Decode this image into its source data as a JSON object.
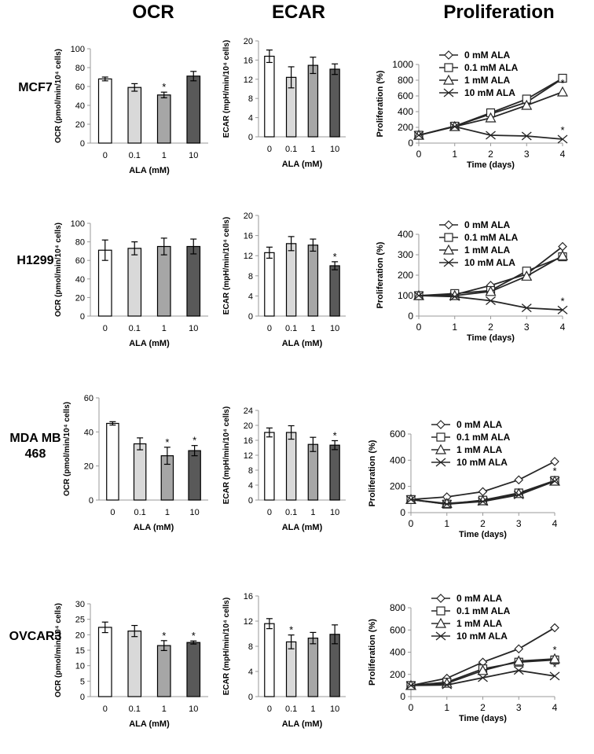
{
  "columns": {
    "ocr": "OCR",
    "ecar": "ECAR",
    "prolif": "Proliferation"
  },
  "rows": [
    {
      "label": "MCF7"
    },
    {
      "label": "H1299"
    },
    {
      "label": "MDA MB 468"
    },
    {
      "label": "OVCAR3"
    }
  ],
  "colors": {
    "bar_0": "#ffffff",
    "bar_0_1": "#d9d9d9",
    "bar_1": "#a6a6a6",
    "bar_10": "#595959",
    "line": "#262626"
  },
  "chart_data": [
    {
      "id": "mcf7-ocr",
      "type": "bar",
      "categories": [
        "0",
        "0.1",
        "1",
        "10"
      ],
      "values": [
        68,
        59,
        51,
        71
      ],
      "errors": [
        2,
        4,
        3,
        5
      ],
      "star": [
        false,
        false,
        true,
        false
      ],
      "ylim": [
        0,
        100
      ],
      "yticks": [
        0,
        20,
        40,
        60,
        80,
        100
      ],
      "ylabel": "OCR (pmol/min/10⁴ cells)",
      "xlabel": "ALA (mM)"
    },
    {
      "id": "mcf7-ecar",
      "type": "bar",
      "categories": [
        "0",
        "0.1",
        "1",
        "10"
      ],
      "values": [
        16.8,
        12.4,
        14.9,
        14.1
      ],
      "errors": [
        1.3,
        2.2,
        1.7,
        1.1
      ],
      "star": [
        false,
        false,
        false,
        false
      ],
      "ylim": [
        0,
        20
      ],
      "yticks": [
        0,
        4,
        8,
        12,
        16,
        20
      ],
      "ylabel": "ECAR (mpH/min/10⁴ cells)",
      "xlabel": "ALA (mM)"
    },
    {
      "id": "mcf7-prolif",
      "type": "line",
      "x": [
        0,
        1,
        2,
        3,
        4
      ],
      "xlim": [
        0,
        4
      ],
      "ylim": [
        0,
        1000
      ],
      "yticks": [
        0,
        200,
        400,
        600,
        800,
        1000
      ],
      "xlabel": "Time (days)",
      "ylabel": "Proliferation (%)",
      "series": [
        {
          "name": "0 mM ALA",
          "marker": "diamond",
          "values": [
            100,
            215,
            370,
            520,
            820
          ]
        },
        {
          "name": "0.1 mM ALA",
          "marker": "square",
          "values": [
            100,
            215,
            385,
            560,
            825
          ]
        },
        {
          "name": "1 mM ALA",
          "marker": "triangle",
          "values": [
            100,
            210,
            320,
            480,
            650
          ]
        },
        {
          "name": "10 mM ALA",
          "marker": "x",
          "values": [
            100,
            210,
            100,
            90,
            50
          ]
        }
      ],
      "stars": [
        {
          "x": 4,
          "y": 720
        },
        {
          "x": 4,
          "y": 120
        }
      ]
    },
    {
      "id": "h1299-ocr",
      "type": "bar",
      "categories": [
        "0",
        "0.1",
        "1",
        "10"
      ],
      "values": [
        71,
        73,
        75,
        75
      ],
      "errors": [
        11,
        7,
        9,
        8
      ],
      "star": [
        false,
        false,
        false,
        false
      ],
      "ylim": [
        0,
        100
      ],
      "yticks": [
        0,
        20,
        40,
        60,
        80,
        100
      ],
      "ylabel": "OCR (pmol/min/10⁴ cells)",
      "xlabel": "ALA (mM)"
    },
    {
      "id": "h1299-ecar",
      "type": "bar",
      "categories": [
        "0",
        "0.1",
        "1",
        "10"
      ],
      "values": [
        12.6,
        14.4,
        14.1,
        10
      ],
      "errors": [
        1.1,
        1.4,
        1.2,
        0.8
      ],
      "star": [
        false,
        false,
        false,
        true
      ],
      "ylim": [
        0,
        20
      ],
      "yticks": [
        0,
        4,
        8,
        12,
        16,
        20
      ],
      "ylabel": "ECAR (mpH/min/10⁴ cells)",
      "xlabel": "ALA (mM)"
    },
    {
      "id": "h1299-prolif",
      "type": "line",
      "x": [
        0,
        1,
        2,
        3,
        4
      ],
      "xlim": [
        0,
        4
      ],
      "ylim": [
        0,
        400
      ],
      "yticks": [
        0,
        100,
        200,
        300,
        400
      ],
      "xlabel": "Time (days)",
      "ylabel": "Proliferation (%)",
      "series": [
        {
          "name": "0 mM ALA",
          "marker": "diamond",
          "values": [
            100,
            105,
            150,
            205,
            340
          ]
        },
        {
          "name": "0.1 mM ALA",
          "marker": "square",
          "values": [
            100,
            110,
            125,
            220,
            290
          ]
        },
        {
          "name": "1 mM ALA",
          "marker": "triangle",
          "values": [
            100,
            100,
            120,
            195,
            295
          ]
        },
        {
          "name": "10 mM ALA",
          "marker": "x",
          "values": [
            100,
            95,
            75,
            40,
            30
          ]
        }
      ],
      "stars": [
        {
          "x": 4,
          "y": 55
        }
      ]
    },
    {
      "id": "mda-ocr",
      "type": "bar",
      "categories": [
        "0",
        "0.1",
        "1",
        "10"
      ],
      "values": [
        45,
        33,
        26,
        29
      ],
      "errors": [
        1,
        3.5,
        5,
        3
      ],
      "star": [
        false,
        false,
        true,
        true
      ],
      "ylim": [
        0,
        60
      ],
      "yticks": [
        0,
        20,
        40,
        60
      ],
      "ylabel": "OCR (pmol/min/10⁴ cells)",
      "xlabel": "ALA (mM)"
    },
    {
      "id": "mda-ecar",
      "type": "bar",
      "categories": [
        "0",
        "0.1",
        "1",
        "10"
      ],
      "values": [
        18.1,
        18.1,
        14.9,
        14.7
      ],
      "errors": [
        1.2,
        1.8,
        1.9,
        1.2
      ],
      "star": [
        false,
        false,
        false,
        true
      ],
      "ylim": [
        0,
        24
      ],
      "yticks": [
        0,
        4,
        8,
        12,
        16,
        20,
        24
      ],
      "ylabel": "ECAR (mpH/min/10⁴ cells)",
      "xlabel": "ALA (mM)"
    },
    {
      "id": "mda-prolif",
      "type": "line",
      "x": [
        0,
        1,
        2,
        3,
        4
      ],
      "xlim": [
        0,
        4
      ],
      "ylim": [
        0,
        600
      ],
      "yticks": [
        0,
        200,
        400,
        600
      ],
      "xlabel": "Time (days)",
      "ylabel": "Proliferation (%)",
      "series": [
        {
          "name": "0 mM ALA",
          "marker": "diamond",
          "values": [
            100,
            120,
            160,
            250,
            390
          ]
        },
        {
          "name": "0.1 mM ALA",
          "marker": "square",
          "values": [
            100,
            65,
            95,
            150,
            245
          ]
        },
        {
          "name": "1 mM ALA",
          "marker": "triangle",
          "values": [
            100,
            70,
            90,
            145,
            240
          ]
        },
        {
          "name": "10 mM ALA",
          "marker": "x",
          "values": [
            100,
            65,
            85,
            135,
            240
          ]
        }
      ],
      "stars": [
        {
          "x": 4,
          "y": 290
        }
      ]
    },
    {
      "id": "ovcar3-ocr",
      "type": "bar",
      "categories": [
        "0",
        "0.1",
        "1",
        "10"
      ],
      "values": [
        22.4,
        21.2,
        16.5,
        17.5
      ],
      "errors": [
        1.7,
        1.8,
        1.6,
        0.5
      ],
      "star": [
        false,
        false,
        true,
        true
      ],
      "ylim": [
        0,
        30
      ],
      "yticks": [
        0,
        5,
        10,
        15,
        20,
        25,
        30
      ],
      "ylabel": "OCR (pmol/min/10⁴ cells)",
      "xlabel": "ALA (mM)"
    },
    {
      "id": "ovcar3-ecar",
      "type": "bar",
      "categories": [
        "0",
        "0.1",
        "1",
        "10"
      ],
      "values": [
        11.6,
        8.7,
        9.3,
        9.9
      ],
      "errors": [
        0.8,
        1.1,
        0.9,
        1.5
      ],
      "star": [
        false,
        true,
        false,
        false
      ],
      "ylim": [
        0,
        16
      ],
      "yticks": [
        0,
        4,
        8,
        12,
        16
      ],
      "ylabel": "ECAR (mpH/min/10⁴ cells)",
      "xlabel": "ALA (mM)"
    },
    {
      "id": "ovcar3-prolif",
      "type": "line",
      "x": [
        0,
        1,
        2,
        3,
        4
      ],
      "xlim": [
        0,
        4
      ],
      "ylim": [
        0,
        800
      ],
      "yticks": [
        0,
        200,
        400,
        600,
        800
      ],
      "xlabel": "Time (days)",
      "ylabel": "Proliferation (%)",
      "series": [
        {
          "name": "0 mM ALA",
          "marker": "diamond",
          "values": [
            100,
            165,
            310,
            430,
            620
          ]
        },
        {
          "name": "0.1 mM ALA",
          "marker": "square",
          "values": [
            100,
            130,
            250,
            310,
            330
          ]
        },
        {
          "name": "1 mM ALA",
          "marker": "triangle",
          "values": [
            100,
            120,
            235,
            320,
            340
          ]
        },
        {
          "name": "10 mM ALA",
          "marker": "x",
          "values": [
            100,
            105,
            170,
            235,
            185
          ]
        }
      ],
      "stars": [
        {
          "x": 4,
          "y": 390
        },
        {
          "x": 4,
          "y": 235
        }
      ]
    }
  ]
}
